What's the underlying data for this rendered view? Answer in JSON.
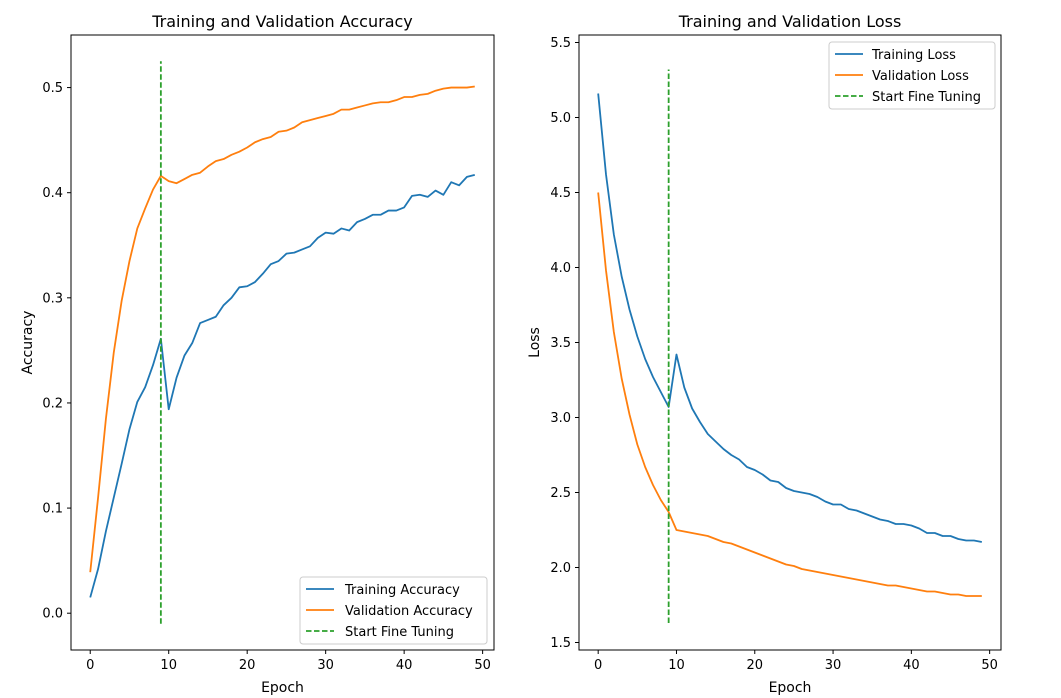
{
  "chart_data": [
    {
      "type": "line",
      "title": "Training and Validation Accuracy",
      "xlabel": "Epoch",
      "ylabel": "Accuracy",
      "xlim": [
        -2.45,
        51.45
      ],
      "ylim": [
        -0.035,
        0.55
      ],
      "xticks": [
        0,
        10,
        20,
        30,
        40,
        50
      ],
      "yticks": [
        0.0,
        0.1,
        0.2,
        0.3,
        0.4,
        0.5
      ],
      "ytick_labels": [
        "0.0",
        "0.1",
        "0.2",
        "0.3",
        "0.4",
        "0.5"
      ],
      "grid": false,
      "legend_position": "lower right",
      "x": [
        0,
        1,
        2,
        3,
        4,
        5,
        6,
        7,
        8,
        9,
        10,
        11,
        12,
        13,
        14,
        15,
        16,
        17,
        18,
        19,
        20,
        21,
        22,
        23,
        24,
        25,
        26,
        27,
        28,
        29,
        30,
        31,
        32,
        33,
        34,
        35,
        36,
        37,
        38,
        39,
        40,
        41,
        42,
        43,
        44,
        45,
        46,
        47,
        48,
        49
      ],
      "series": [
        {
          "name": "Training Accuracy",
          "color": "#1f77b4",
          "style": "solid",
          "values": [
            0.015,
            0.042,
            0.078,
            0.11,
            0.142,
            0.175,
            0.201,
            0.215,
            0.236,
            0.261,
            0.194,
            0.224,
            0.245,
            0.257,
            0.276,
            0.279,
            0.282,
            0.293,
            0.3,
            0.31,
            0.311,
            0.315,
            0.323,
            0.332,
            0.335,
            0.342,
            0.343,
            0.346,
            0.349,
            0.357,
            0.362,
            0.361,
            0.366,
            0.364,
            0.372,
            0.375,
            0.379,
            0.379,
            0.383,
            0.383,
            0.386,
            0.397,
            0.398,
            0.396,
            0.402,
            0.398,
            0.41,
            0.407,
            0.415,
            0.417
          ]
        },
        {
          "name": "Validation Accuracy",
          "color": "#ff7f0e",
          "style": "solid",
          "values": [
            0.039,
            0.11,
            0.185,
            0.248,
            0.297,
            0.335,
            0.366,
            0.385,
            0.403,
            0.416,
            0.411,
            0.409,
            0.413,
            0.417,
            0.419,
            0.425,
            0.43,
            0.432,
            0.436,
            0.439,
            0.443,
            0.448,
            0.451,
            0.453,
            0.458,
            0.459,
            0.462,
            0.467,
            0.469,
            0.471,
            0.473,
            0.475,
            0.479,
            0.479,
            0.481,
            0.483,
            0.485,
            0.486,
            0.486,
            0.488,
            0.491,
            0.491,
            0.493,
            0.494,
            0.497,
            0.499,
            0.5,
            0.5,
            0.5,
            0.501
          ]
        },
        {
          "name": "Start Fine Tuning",
          "color": "#2ca02c",
          "style": "dashed",
          "x": [
            9,
            9
          ],
          "values": [
            -0.01,
            0.525
          ]
        }
      ]
    },
    {
      "type": "line",
      "title": "Training and Validation Loss",
      "xlabel": "Epoch",
      "ylabel": "Loss",
      "xlim": [
        -2.45,
        51.45
      ],
      "ylim": [
        1.45,
        5.55
      ],
      "xticks": [
        0,
        10,
        20,
        30,
        40,
        50
      ],
      "yticks": [
        1.5,
        2.0,
        2.5,
        3.0,
        3.5,
        4.0,
        4.5,
        5.0,
        5.5
      ],
      "ytick_labels": [
        "1.5",
        "2.0",
        "2.5",
        "3.0",
        "3.5",
        "4.0",
        "4.5",
        "5.0",
        "5.5"
      ],
      "grid": false,
      "legend_position": "upper right",
      "x": [
        0,
        1,
        2,
        3,
        4,
        5,
        6,
        7,
        8,
        9,
        10,
        11,
        12,
        13,
        14,
        15,
        16,
        17,
        18,
        19,
        20,
        21,
        22,
        23,
        24,
        25,
        26,
        27,
        28,
        29,
        30,
        31,
        32,
        33,
        34,
        35,
        36,
        37,
        38,
        39,
        40,
        41,
        42,
        43,
        44,
        45,
        46,
        47,
        48,
        49
      ],
      "series": [
        {
          "name": "Training Loss",
          "color": "#1f77b4",
          "style": "solid",
          "values": [
            5.16,
            4.62,
            4.22,
            3.94,
            3.72,
            3.54,
            3.39,
            3.27,
            3.17,
            3.07,
            3.42,
            3.2,
            3.06,
            2.97,
            2.89,
            2.84,
            2.79,
            2.75,
            2.72,
            2.67,
            2.65,
            2.62,
            2.58,
            2.57,
            2.53,
            2.51,
            2.5,
            2.49,
            2.47,
            2.44,
            2.42,
            2.42,
            2.39,
            2.38,
            2.36,
            2.34,
            2.32,
            2.31,
            2.29,
            2.29,
            2.28,
            2.26,
            2.23,
            2.23,
            2.21,
            2.21,
            2.19,
            2.18,
            2.18,
            2.17
          ]
        },
        {
          "name": "Validation Loss",
          "color": "#ff7f0e",
          "style": "solid",
          "values": [
            4.5,
            3.98,
            3.57,
            3.26,
            3.02,
            2.82,
            2.67,
            2.55,
            2.45,
            2.37,
            2.25,
            2.24,
            2.23,
            2.22,
            2.21,
            2.19,
            2.17,
            2.16,
            2.14,
            2.12,
            2.1,
            2.08,
            2.06,
            2.04,
            2.02,
            2.01,
            1.99,
            1.98,
            1.97,
            1.96,
            1.95,
            1.94,
            1.93,
            1.92,
            1.91,
            1.9,
            1.89,
            1.88,
            1.88,
            1.87,
            1.86,
            1.85,
            1.84,
            1.84,
            1.83,
            1.82,
            1.82,
            1.81,
            1.81,
            1.81
          ]
        },
        {
          "name": "Start Fine Tuning",
          "color": "#2ca02c",
          "style": "dashed",
          "x": [
            9,
            9
          ],
          "values": [
            1.63,
            5.32
          ]
        }
      ]
    }
  ]
}
